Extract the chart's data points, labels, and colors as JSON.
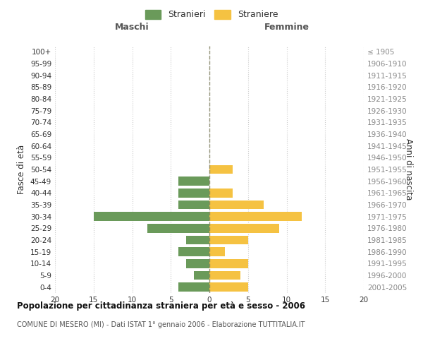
{
  "age_groups": [
    "0-4",
    "5-9",
    "10-14",
    "15-19",
    "20-24",
    "25-29",
    "30-34",
    "35-39",
    "40-44",
    "45-49",
    "50-54",
    "55-59",
    "60-64",
    "65-69",
    "70-74",
    "75-79",
    "80-84",
    "85-89",
    "90-94",
    "95-99",
    "100+"
  ],
  "birth_years": [
    "2001-2005",
    "1996-2000",
    "1991-1995",
    "1986-1990",
    "1981-1985",
    "1976-1980",
    "1971-1975",
    "1966-1970",
    "1961-1965",
    "1956-1960",
    "1951-1955",
    "1946-1950",
    "1941-1945",
    "1936-1940",
    "1931-1935",
    "1926-1930",
    "1921-1925",
    "1916-1920",
    "1911-1915",
    "1906-1910",
    "≤ 1905"
  ],
  "males": [
    4,
    2,
    3,
    4,
    3,
    8,
    15,
    4,
    4,
    4,
    0,
    0,
    0,
    0,
    0,
    0,
    0,
    0,
    0,
    0,
    0
  ],
  "females": [
    5,
    4,
    5,
    2,
    5,
    9,
    12,
    7,
    3,
    0,
    3,
    0,
    0,
    0,
    0,
    0,
    0,
    0,
    0,
    0,
    0
  ],
  "male_color": "#6a9a5a",
  "female_color": "#f5c242",
  "background_color": "#ffffff",
  "grid_color": "#cccccc",
  "title": "Popolazione per cittadinanza straniera per età e sesso - 2006",
  "subtitle": "COMUNE DI MESERO (MI) - Dati ISTAT 1° gennaio 2006 - Elaborazione TUTTITALIA.IT",
  "xlabel_left": "Maschi",
  "xlabel_right": "Femmine",
  "ylabel_left": "Fasce di età",
  "ylabel_right": "Anni di nascita",
  "legend_male": "Stranieri",
  "legend_female": "Straniere",
  "xlim": 20,
  "xticks": [
    -20,
    -15,
    -10,
    -5,
    0,
    5,
    10,
    15,
    20
  ],
  "dpi": 100,
  "figsize": [
    6.0,
    5.0
  ]
}
